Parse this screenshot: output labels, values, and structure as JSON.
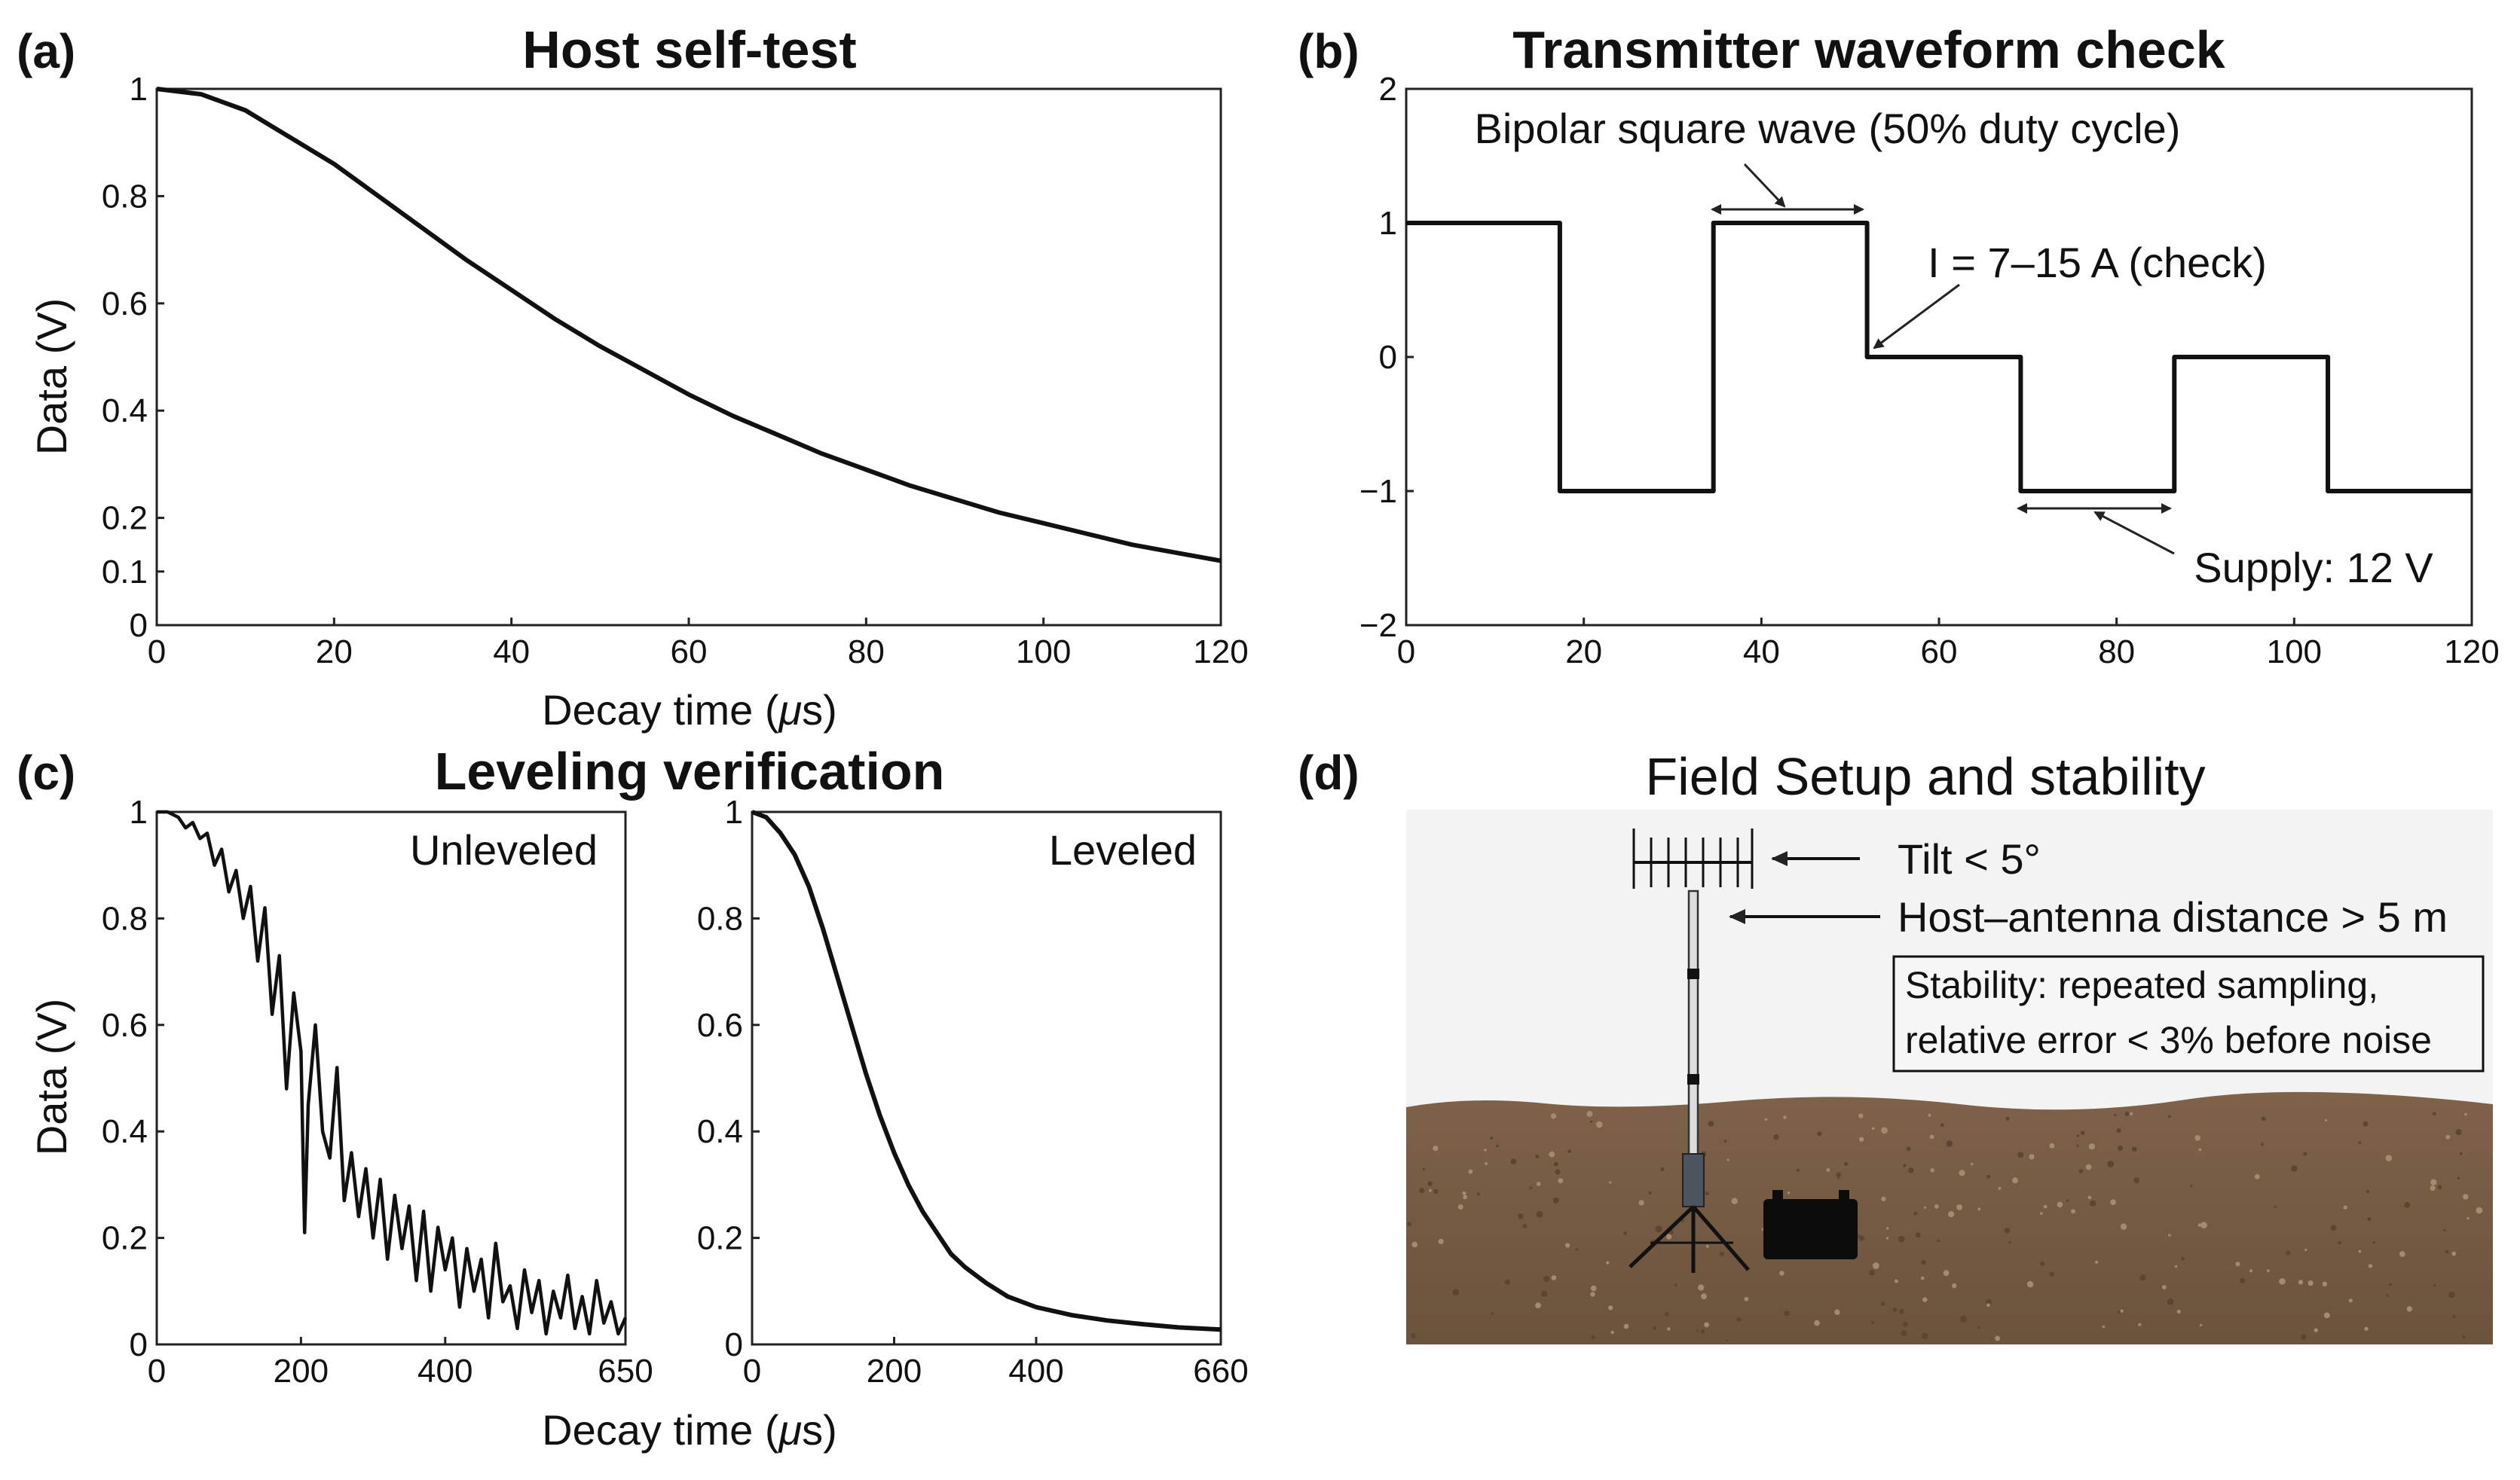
{
  "panels": {
    "a": {
      "label": "(a)",
      "title": "Host self-test"
    },
    "b": {
      "label": "(b)",
      "title": "Transmitter waveform check"
    },
    "c": {
      "label": "(c)",
      "title": "Leveling verification"
    },
    "d": {
      "label": "(d)",
      "title": "Field Setup and stability"
    }
  },
  "chart_data": [
    {
      "id": "a",
      "type": "line",
      "title": "Host self-test",
      "xlabel": "Decay time (μs)",
      "ylabel": "Data (V)",
      "xlim": [
        0,
        120
      ],
      "ylim": [
        0,
        1
      ],
      "xticks": [
        0,
        20,
        40,
        60,
        80,
        100,
        120
      ],
      "yticks": [
        0,
        0.1,
        0.2,
        0.4,
        0.6,
        0.8,
        1
      ],
      "ytick_labels": [
        "0",
        "0.1",
        "0.2",
        "0.4",
        "0.6",
        "0.8",
        "1"
      ],
      "x": [
        0,
        5,
        10,
        15,
        20,
        25,
        30,
        35,
        40,
        45,
        50,
        55,
        60,
        65,
        70,
        75,
        80,
        85,
        90,
        95,
        100,
        105,
        110,
        115,
        120
      ],
      "y": [
        1.0,
        0.99,
        0.96,
        0.91,
        0.86,
        0.8,
        0.74,
        0.68,
        0.625,
        0.57,
        0.52,
        0.475,
        0.43,
        0.39,
        0.355,
        0.32,
        0.29,
        0.26,
        0.235,
        0.21,
        0.19,
        0.17,
        0.15,
        0.135,
        0.12
      ],
      "grid": false
    },
    {
      "id": "b",
      "type": "line",
      "title": "Transmitter waveform check",
      "xlim": [
        0,
        120
      ],
      "ylim": [
        -2,
        2
      ],
      "xticks": [
        0,
        20,
        40,
        60,
        80,
        100,
        120
      ],
      "yticks": [
        -2,
        -1,
        0,
        1,
        2
      ],
      "ytick_labels": [
        "−2",
        "−1",
        "0",
        "1",
        "2"
      ],
      "x": [
        0,
        17.3,
        17.3,
        34.6,
        34.6,
        51.9,
        51.9,
        69.2,
        69.2,
        86.5,
        86.5,
        103.8,
        103.8,
        120
      ],
      "y": [
        1,
        1,
        -1,
        -1,
        1,
        1,
        0,
        0,
        -1,
        -1,
        0,
        0,
        -1,
        -1
      ],
      "annotations": [
        "Bipolar square wave (50% duty cycle)",
        "I = 7–15 A (check)",
        "Supply: 12 V"
      ],
      "grid": false
    },
    {
      "id": "c-left",
      "type": "line",
      "title": "Leveling verification",
      "xlabel": "Decay time (μs)",
      "ylabel": "Data (V)",
      "legend_text": "Unleveled",
      "xlim": [
        0,
        650
      ],
      "ylim": [
        0,
        1
      ],
      "xticks": [
        0,
        200,
        400,
        650
      ],
      "yticks": [
        0,
        0.2,
        0.4,
        0.6,
        0.8,
        1
      ],
      "ytick_labels": [
        "0",
        "0.2",
        "0.4",
        "0.6",
        "0.8",
        "1"
      ],
      "x": [
        0,
        15,
        30,
        40,
        50,
        60,
        70,
        80,
        90,
        100,
        110,
        120,
        130,
        140,
        150,
        160,
        170,
        180,
        190,
        200,
        205,
        210,
        220,
        230,
        240,
        250,
        260,
        270,
        280,
        290,
        300,
        310,
        320,
        330,
        340,
        350,
        360,
        370,
        380,
        390,
        400,
        410,
        420,
        430,
        440,
        450,
        460,
        470,
        480,
        490,
        500,
        510,
        520,
        530,
        540,
        550,
        560,
        570,
        580,
        590,
        600,
        610,
        620,
        630,
        640,
        650
      ],
      "y": [
        1.0,
        1.0,
        0.99,
        0.97,
        0.98,
        0.95,
        0.96,
        0.9,
        0.93,
        0.85,
        0.89,
        0.8,
        0.86,
        0.72,
        0.82,
        0.62,
        0.73,
        0.48,
        0.66,
        0.55,
        0.21,
        0.45,
        0.6,
        0.4,
        0.35,
        0.52,
        0.27,
        0.36,
        0.24,
        0.33,
        0.2,
        0.31,
        0.16,
        0.28,
        0.18,
        0.26,
        0.12,
        0.25,
        0.1,
        0.22,
        0.14,
        0.2,
        0.07,
        0.18,
        0.1,
        0.16,
        0.05,
        0.19,
        0.08,
        0.11,
        0.03,
        0.14,
        0.06,
        0.12,
        0.02,
        0.1,
        0.05,
        0.13,
        0.03,
        0.09,
        0.02,
        0.12,
        0.04,
        0.08,
        0.02,
        0.05
      ],
      "grid": false
    },
    {
      "id": "c-right",
      "type": "line",
      "legend_text": "Leveled",
      "xlim": [
        0,
        660
      ],
      "ylim": [
        0,
        1
      ],
      "xticks": [
        0,
        200,
        400,
        660
      ],
      "yticks": [
        0,
        0.2,
        0.4,
        0.6,
        0.8,
        1
      ],
      "ytick_labels": [
        "0",
        "0.2",
        "0.4",
        "0.6",
        "0.8",
        "1"
      ],
      "x": [
        0,
        20,
        40,
        60,
        80,
        100,
        120,
        140,
        160,
        180,
        200,
        220,
        240,
        260,
        280,
        300,
        330,
        360,
        400,
        450,
        500,
        550,
        600,
        660
      ],
      "y": [
        1.0,
        0.99,
        0.96,
        0.92,
        0.86,
        0.78,
        0.69,
        0.6,
        0.51,
        0.43,
        0.36,
        0.3,
        0.25,
        0.21,
        0.17,
        0.145,
        0.115,
        0.09,
        0.07,
        0.055,
        0.045,
        0.038,
        0.032,
        0.028
      ],
      "grid": false
    }
  ],
  "field": {
    "tilt": "Tilt < 5°",
    "distance": "Host–antenna distance > 5 m",
    "stability_line1": "Stability: repeated sampling,",
    "stability_line2": "relative error < 3% before noise"
  },
  "colors": {
    "line": "#111111",
    "soil": "#7a5f45",
    "background": "#ffffff",
    "sky": "#f2f2f2"
  }
}
